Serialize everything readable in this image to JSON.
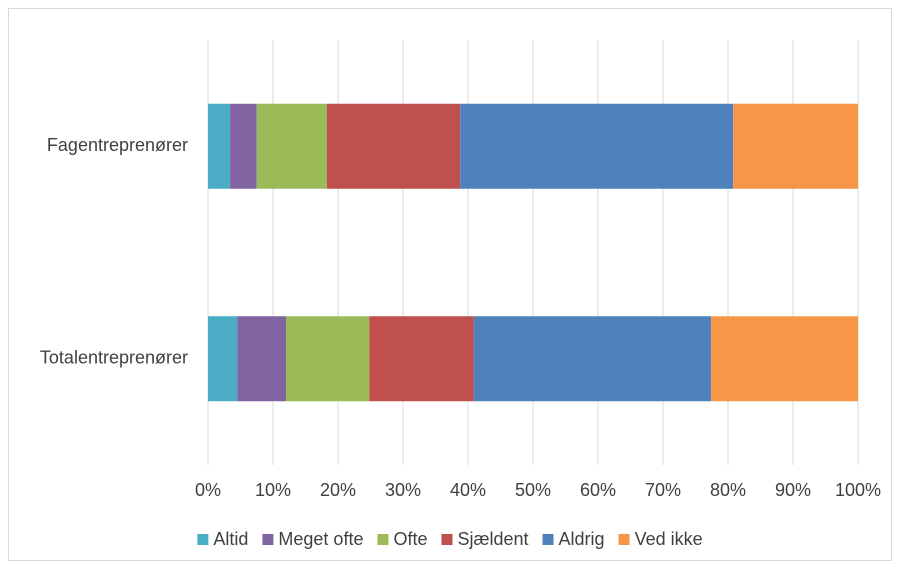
{
  "chart_data": {
    "type": "stacked_barh",
    "categories": [
      "Fagentreprenører",
      "Totalentreprenører"
    ],
    "series": [
      {
        "name": "Altid",
        "color": "#4bacc6",
        "values": [
          3.4,
          4.5
        ]
      },
      {
        "name": "Meget ofte",
        "color": "#8064a2",
        "values": [
          4.1,
          7.5
        ]
      },
      {
        "name": "Ofte",
        "color": "#9bbb59",
        "values": [
          10.8,
          12.8
        ]
      },
      {
        "name": "Sjældent",
        "color": "#c0504d",
        "values": [
          20.5,
          16.1
        ]
      },
      {
        "name": "Aldrig",
        "color": "#4f81bd",
        "values": [
          42.0,
          36.5
        ]
      },
      {
        "name": "Ved ikke",
        "color": "#f79646",
        "values": [
          19.2,
          22.6
        ]
      }
    ],
    "xlim": [
      0,
      100
    ],
    "xticks": [
      {
        "value": 0,
        "label": "0%"
      },
      {
        "value": 10,
        "label": "10%"
      },
      {
        "value": 20,
        "label": "20%"
      },
      {
        "value": 30,
        "label": "30%"
      },
      {
        "value": 40,
        "label": "40%"
      },
      {
        "value": 50,
        "label": "50%"
      },
      {
        "value": 60,
        "label": "60%"
      },
      {
        "value": 70,
        "label": "70%"
      },
      {
        "value": 80,
        "label": "80%"
      },
      {
        "value": 90,
        "label": "90%"
      },
      {
        "value": 100,
        "label": "100%"
      }
    ],
    "grid": true,
    "legend": "bottom"
  }
}
